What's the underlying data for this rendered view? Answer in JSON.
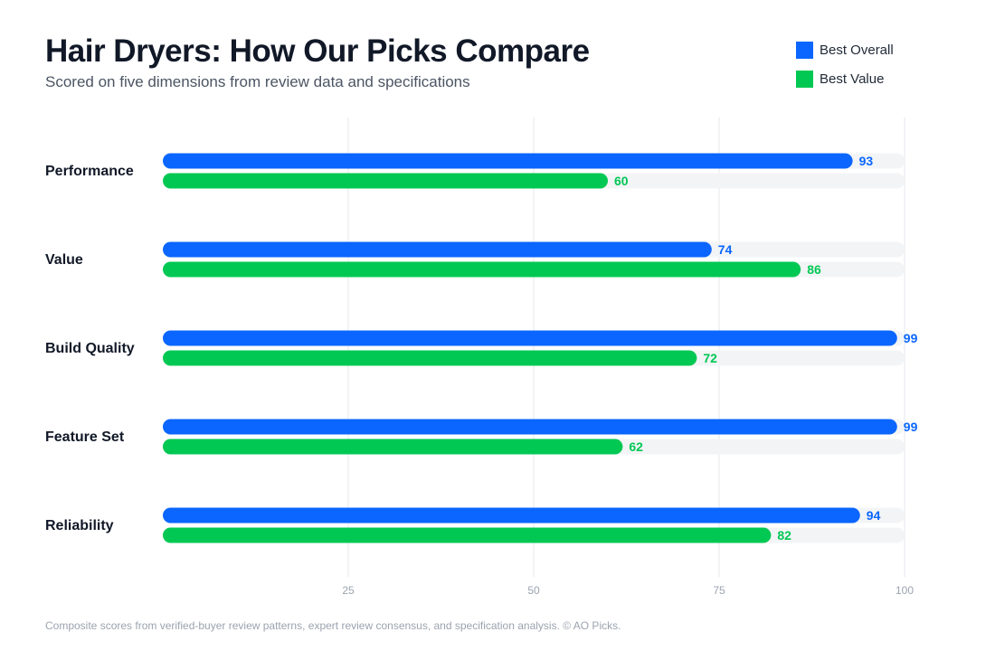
{
  "header": {
    "title": "Hair Dryers: How Our Picks Compare",
    "subtitle": "Scored on five dimensions from review data and specifications"
  },
  "footer": {
    "note": "Composite scores from verified-buyer review patterns, expert review consensus, and specification analysis. © AO Picks."
  },
  "colors": {
    "best_overall": "#0a66ff",
    "best_value": "#00c853",
    "track": "#f3f4f6",
    "grid": "#e5e7eb"
  },
  "chart_data": {
    "type": "bar",
    "orientation": "horizontal",
    "categories": [
      "Performance",
      "Value",
      "Build Quality",
      "Feature Set",
      "Reliability"
    ],
    "series": [
      {
        "name": "Best Overall",
        "values": [
          93,
          74,
          99,
          99,
          94
        ],
        "color": "#0a66ff"
      },
      {
        "name": "Best Value",
        "values": [
          60,
          86,
          72,
          62,
          82
        ],
        "color": "#00c853"
      }
    ],
    "xlim": [
      0,
      100
    ],
    "xticks": [
      25,
      50,
      75,
      100
    ],
    "grid": true,
    "legend": "top-right",
    "data_labels": true
  }
}
